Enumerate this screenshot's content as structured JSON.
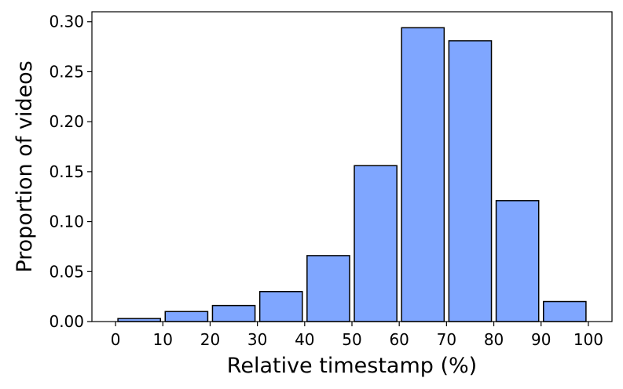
{
  "chart_data": {
    "type": "bar",
    "bins": [
      {
        "start": 0,
        "end": 10,
        "value": 0.003
      },
      {
        "start": 10,
        "end": 20,
        "value": 0.01
      },
      {
        "start": 20,
        "end": 30,
        "value": 0.016
      },
      {
        "start": 30,
        "end": 40,
        "value": 0.03
      },
      {
        "start": 40,
        "end": 50,
        "value": 0.066
      },
      {
        "start": 50,
        "end": 60,
        "value": 0.156
      },
      {
        "start": 60,
        "end": 70,
        "value": 0.294
      },
      {
        "start": 70,
        "end": 80,
        "value": 0.281
      },
      {
        "start": 80,
        "end": 90,
        "value": 0.121
      },
      {
        "start": 90,
        "end": 100,
        "value": 0.02
      }
    ],
    "xlabel": "Relative timestamp (%)",
    "ylabel": "Proportion of videos",
    "xlim": [
      -5,
      105
    ],
    "ylim": [
      0,
      0.31
    ],
    "xticks": [
      "0",
      "10",
      "20",
      "30",
      "40",
      "50",
      "60",
      "70",
      "80",
      "90",
      "100"
    ],
    "yticks": [
      "0.00",
      "0.05",
      "0.10",
      "0.15",
      "0.20",
      "0.25",
      "0.30"
    ],
    "grid": false,
    "bar_color": "#7fa6ff",
    "edge_color": "#000000"
  }
}
